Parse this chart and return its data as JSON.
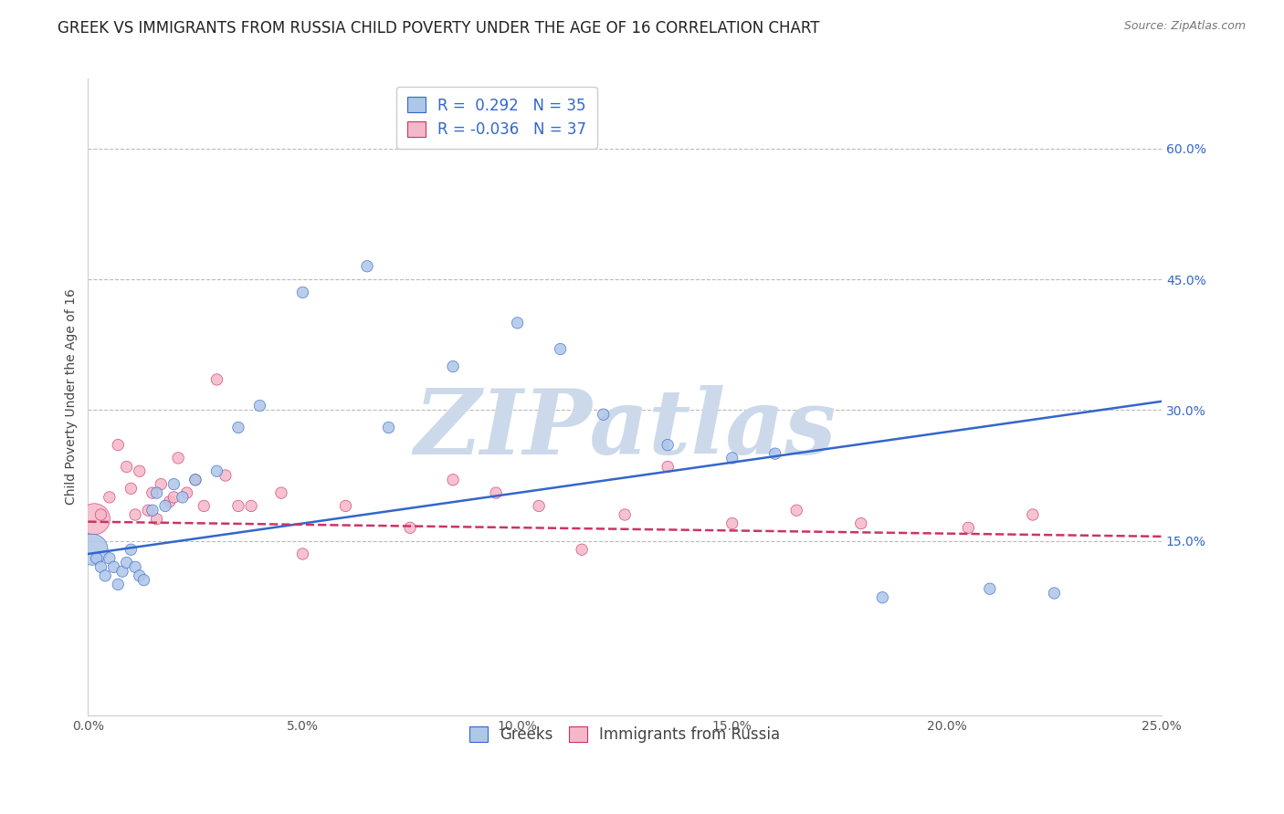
{
  "title": "GREEK VS IMMIGRANTS FROM RUSSIA CHILD POVERTY UNDER THE AGE OF 16 CORRELATION CHART",
  "source": "Source: ZipAtlas.com",
  "ylabel": "Child Poverty Under the Age of 16",
  "xlabel_ticks": [
    "0.0%",
    "5.0%",
    "10.0%",
    "15.0%",
    "20.0%",
    "25.0%"
  ],
  "xlabel_vals": [
    0,
    5,
    10,
    15,
    20,
    25
  ],
  "ylabel_ticks": [
    "15.0%",
    "30.0%",
    "45.0%",
    "60.0%"
  ],
  "ylabel_vals": [
    15,
    30,
    45,
    60
  ],
  "xlim": [
    0,
    25
  ],
  "ylim": [
    -5,
    68
  ],
  "legend1_label": "R =  0.292   N = 35",
  "legend2_label": "R = -0.036   N = 37",
  "legend_label1": "Greeks",
  "legend_label2": "Immigrants from Russia",
  "blue_color": "#aec6e8",
  "pink_color": "#f5b8c8",
  "blue_line_color": "#3366cc",
  "pink_line_color": "#cc3366",
  "blue_trend_x": [
    0,
    25
  ],
  "blue_trend_y": [
    13.5,
    31.0
  ],
  "pink_trend_x": [
    0,
    25
  ],
  "pink_trend_y": [
    17.2,
    15.5
  ],
  "greeks_x": [
    0.1,
    0.2,
    0.3,
    0.4,
    0.5,
    0.6,
    0.7,
    0.8,
    0.9,
    1.0,
    1.1,
    1.2,
    1.3,
    1.5,
    1.6,
    1.8,
    2.0,
    2.2,
    2.5,
    3.0,
    3.5,
    4.0,
    5.0,
    6.5,
    7.0,
    8.5,
    10.0,
    11.0,
    12.0,
    13.5,
    15.0,
    16.0,
    18.5,
    21.0,
    22.5
  ],
  "greeks_y": [
    14.0,
    13.0,
    12.0,
    11.0,
    13.0,
    12.0,
    10.0,
    11.5,
    12.5,
    14.0,
    12.0,
    11.0,
    10.5,
    18.5,
    20.5,
    19.0,
    21.5,
    20.0,
    22.0,
    23.0,
    28.0,
    30.5,
    43.5,
    46.5,
    28.0,
    35.0,
    40.0,
    37.0,
    29.5,
    26.0,
    24.5,
    25.0,
    8.5,
    9.5,
    9.0
  ],
  "greeks_size": [
    600,
    80,
    80,
    80,
    80,
    80,
    80,
    80,
    80,
    80,
    80,
    80,
    80,
    80,
    80,
    80,
    80,
    80,
    80,
    80,
    80,
    80,
    80,
    80,
    80,
    80,
    80,
    80,
    80,
    80,
    80,
    80,
    80,
    80,
    80
  ],
  "russia_x": [
    0.15,
    0.3,
    0.5,
    0.7,
    0.9,
    1.0,
    1.1,
    1.2,
    1.4,
    1.5,
    1.6,
    1.7,
    1.9,
    2.0,
    2.1,
    2.3,
    2.5,
    2.7,
    3.0,
    3.2,
    3.5,
    3.8,
    4.5,
    5.0,
    6.0,
    7.5,
    8.5,
    9.5,
    10.5,
    11.5,
    12.5,
    13.5,
    15.0,
    16.5,
    18.0,
    20.5,
    22.0
  ],
  "russia_y": [
    17.5,
    18.0,
    20.0,
    26.0,
    23.5,
    21.0,
    18.0,
    23.0,
    18.5,
    20.5,
    17.5,
    21.5,
    19.5,
    20.0,
    24.5,
    20.5,
    22.0,
    19.0,
    33.5,
    22.5,
    19.0,
    19.0,
    20.5,
    13.5,
    19.0,
    16.5,
    22.0,
    20.5,
    19.0,
    14.0,
    18.0,
    23.5,
    17.0,
    18.5,
    17.0,
    16.5,
    18.0
  ],
  "russia_size": [
    600,
    80,
    80,
    80,
    80,
    80,
    80,
    80,
    80,
    80,
    80,
    80,
    80,
    80,
    80,
    80,
    80,
    80,
    80,
    80,
    80,
    80,
    80,
    80,
    80,
    80,
    80,
    80,
    80,
    80,
    80,
    80,
    80,
    80,
    80,
    80,
    80
  ],
  "background_color": "#ffffff",
  "grid_color": "#bbbbbb",
  "watermark_text": "ZIPatlas",
  "watermark_color": "#ccd9ea",
  "title_fontsize": 12,
  "source_fontsize": 9,
  "axis_label_fontsize": 10,
  "tick_fontsize": 10,
  "legend_fontsize": 12
}
